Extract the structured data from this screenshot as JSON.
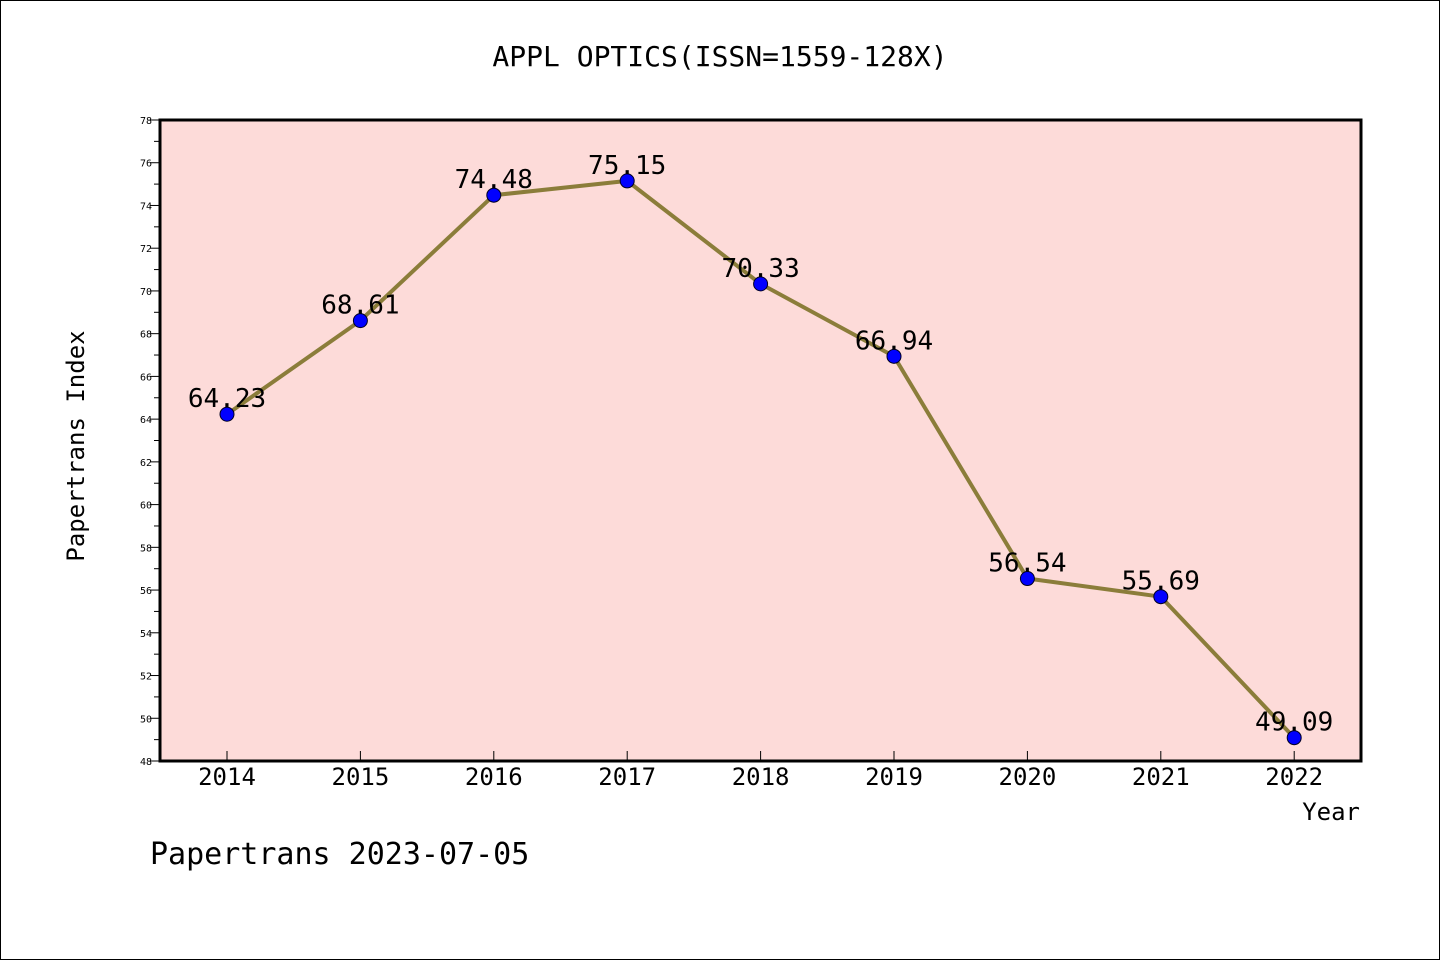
{
  "chart_data": {
    "type": "line",
    "title": "APPL OPTICS(ISSN=1559-128X)",
    "xlabel": "Year",
    "ylabel": "Papertrans Index",
    "categories": [
      "2014",
      "2015",
      "2016",
      "2017",
      "2018",
      "2019",
      "2020",
      "2021",
      "2022"
    ],
    "series": [
      {
        "values": [
          64.23,
          68.61,
          74.48,
          75.15,
          70.33,
          66.94,
          56.54,
          55.69,
          49.09
        ],
        "labels": [
          "64.23",
          "68.61",
          "74.48",
          "75.15",
          "70.33",
          "66.94",
          "56.54",
          "55.69",
          "49.09"
        ]
      }
    ],
    "ylim": [
      48,
      78
    ],
    "yticks": [
      "48",
      "50",
      "52",
      "54",
      "56",
      "58",
      "60",
      "62",
      "64",
      "66",
      "68",
      "70",
      "72",
      "74",
      "76",
      "78"
    ],
    "grid": false,
    "colors": {
      "plot_background": "#fddbd9",
      "line": "#8b7d3a",
      "marker": "#0000ff"
    }
  },
  "footer": "Papertrans 2023-07-05"
}
